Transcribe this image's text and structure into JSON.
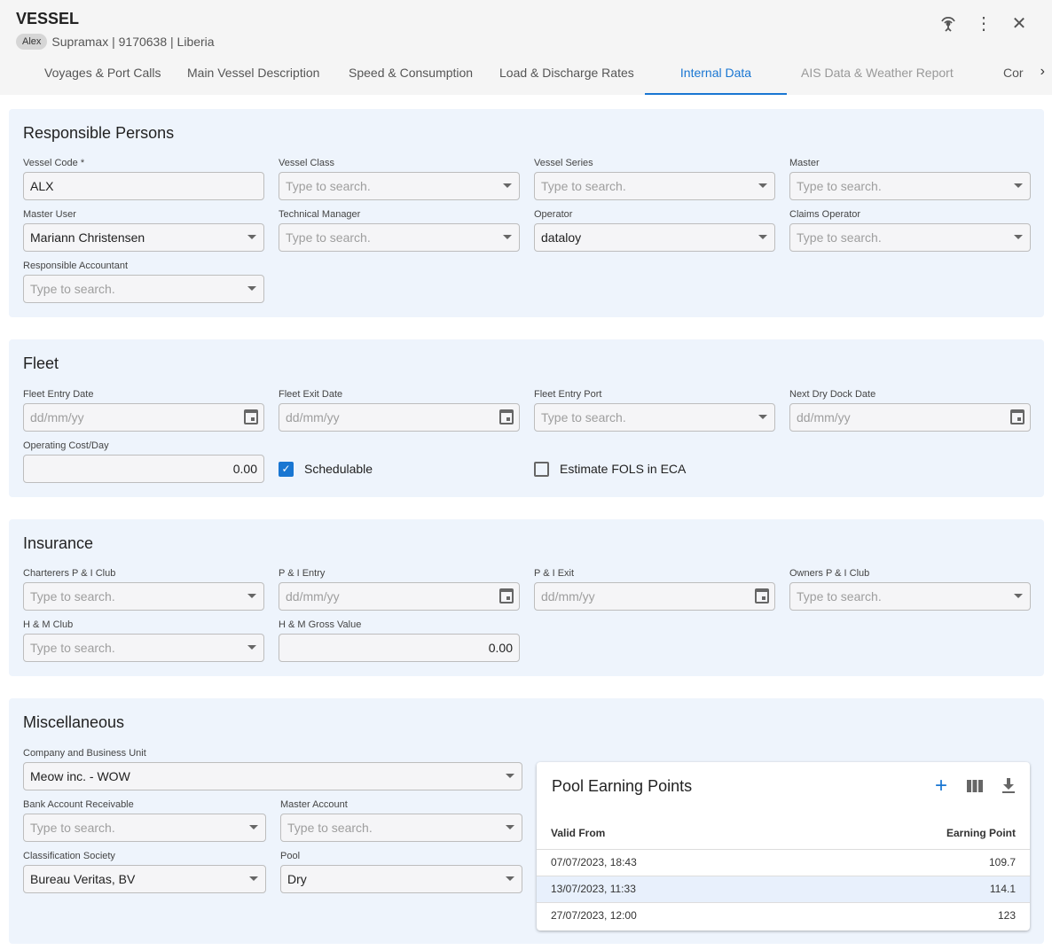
{
  "header": {
    "title": "VESSEL",
    "chip": "Alex",
    "subtitle": "Supramax | 9170638 | Liberia"
  },
  "icons": {
    "signal": "antenna-signal-icon",
    "more": "more-vert-icon",
    "close": "close-icon"
  },
  "tabs": [
    {
      "label": "Voyages & Port Calls"
    },
    {
      "label": "Main Vessel Description"
    },
    {
      "label": "Speed & Consumption"
    },
    {
      "label": "Load & Discharge Rates"
    },
    {
      "label": "Internal Data",
      "active": true
    },
    {
      "label": "AIS Data & Weather Report"
    },
    {
      "label": "Cor"
    }
  ],
  "accent": "#1976d2",
  "sections": {
    "responsible": {
      "title": "Responsible Persons",
      "fields": [
        {
          "label": "Vessel Code *",
          "type": "text",
          "value": "ALX"
        },
        {
          "label": "Vessel Class",
          "type": "select",
          "placeholder": "Type to search."
        },
        {
          "label": "Vessel Series",
          "type": "select",
          "placeholder": "Type to search."
        },
        {
          "label": "Master",
          "type": "select",
          "placeholder": "Type to search."
        },
        {
          "label": "Master User",
          "type": "select",
          "value": "Mariann Christensen"
        },
        {
          "label": "Technical Manager",
          "type": "select",
          "placeholder": "Type to search."
        },
        {
          "label": "Operator",
          "type": "select",
          "value": "dataloy"
        },
        {
          "label": "Claims Operator",
          "type": "select",
          "placeholder": "Type to search."
        },
        {
          "label": "Responsible Accountant",
          "type": "select",
          "placeholder": "Type to search."
        }
      ]
    },
    "fleet": {
      "title": "Fleet",
      "fields": [
        {
          "label": "Fleet Entry Date",
          "type": "date",
          "placeholder": "dd/mm/yy"
        },
        {
          "label": "Fleet Exit Date",
          "type": "date",
          "placeholder": "dd/mm/yy"
        },
        {
          "label": "Fleet Entry Port",
          "type": "select",
          "placeholder": "Type to search."
        },
        {
          "label": "Next Dry Dock Date",
          "type": "date",
          "placeholder": "dd/mm/yy"
        },
        {
          "label": "Operating Cost/Day",
          "type": "number",
          "value": "0.00"
        },
        {
          "type": "checkbox",
          "label": "Schedulable",
          "checked": true
        },
        {
          "type": "checkbox",
          "label": "Estimate FOLS in ECA",
          "checked": false
        }
      ]
    },
    "insurance": {
      "title": "Insurance",
      "fields": [
        {
          "label": "Charterers P & I Club",
          "type": "select",
          "placeholder": "Type to search."
        },
        {
          "label": "P & I Entry",
          "type": "date",
          "placeholder": "dd/mm/yy"
        },
        {
          "label": "P & I Exit",
          "type": "date",
          "placeholder": "dd/mm/yy"
        },
        {
          "label": "Owners P & I Club",
          "type": "select",
          "placeholder": "Type to search."
        },
        {
          "label": "H & M Club",
          "type": "select",
          "placeholder": "Type to search."
        },
        {
          "label": "H & M Gross Value",
          "type": "number",
          "value": "0.00"
        }
      ]
    },
    "misc": {
      "title": "Miscellaneous",
      "fields": [
        {
          "label": "Company and Business Unit",
          "type": "select",
          "value": "Meow inc. - WOW",
          "wide": true
        },
        {
          "label": "Bank Account Receivable",
          "type": "select",
          "placeholder": "Type to search."
        },
        {
          "label": "Master Account",
          "type": "select",
          "placeholder": "Type to search."
        },
        {
          "label": "Classification Society",
          "type": "select",
          "value": "Bureau Veritas,  BV"
        },
        {
          "label": "Pool",
          "type": "select",
          "value": "Dry"
        }
      ]
    }
  },
  "pool": {
    "title": "Pool Earning Points",
    "icons": [
      "add-icon",
      "columns-icon",
      "download-icon"
    ],
    "columns": [
      "Valid From",
      "Earning Point"
    ],
    "rows": [
      [
        "07/07/2023, 18:43",
        "109.7"
      ],
      [
        "13/07/2023, 11:33",
        "114.1"
      ],
      [
        "27/07/2023, 12:00",
        "123"
      ]
    ]
  }
}
